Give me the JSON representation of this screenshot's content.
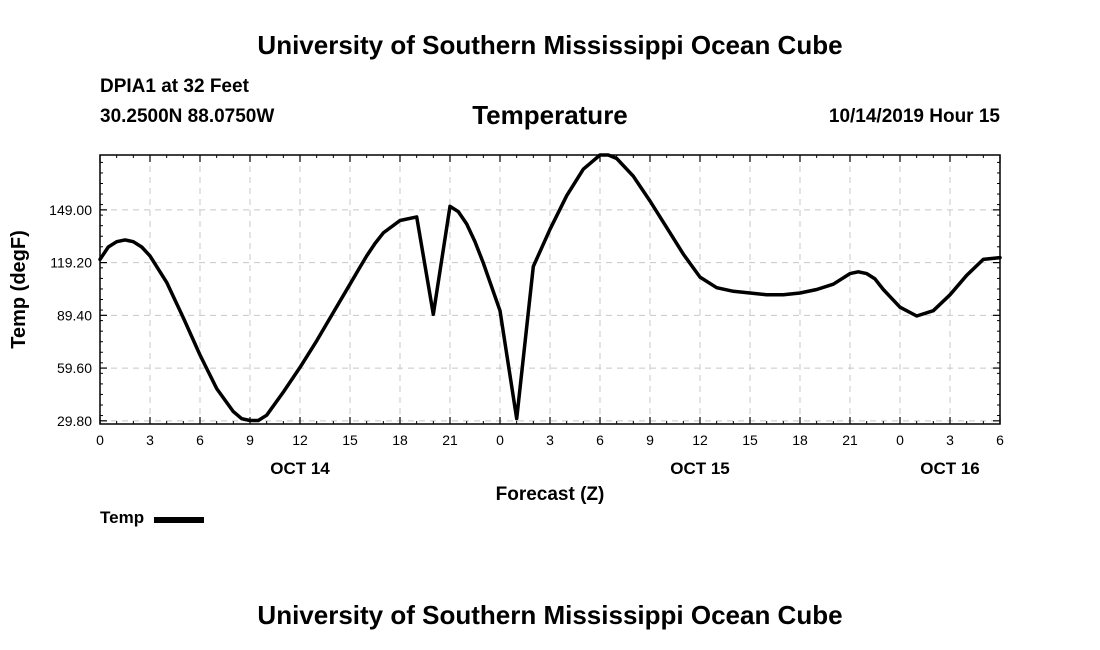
{
  "header": {
    "institution_title": "University of Southern Mississippi Ocean Cube",
    "station": "DPIA1 at 32 Feet",
    "coords": "30.2500N 88.0750W",
    "chart_title": "Temperature",
    "timestamp": "10/14/2019 Hour 15"
  },
  "footer": {
    "institution_title": "University of Southern Mississippi Ocean Cube"
  },
  "legend": {
    "label": "Temp",
    "swatch_color": "#000000"
  },
  "chart_data": {
    "type": "line",
    "title": "Temperature",
    "xlabel": "Forecast (Z)",
    "ylabel": "Temp (degF)",
    "x_unit": "hours since OCT 14 00Z",
    "xlim": [
      0,
      54
    ],
    "ylim": [
      28,
      180
    ],
    "grid": true,
    "yticks": [
      29.8,
      59.6,
      89.4,
      119.2,
      149.0
    ],
    "ytick_labels": [
      "29.80",
      "59.60",
      "89.40",
      "119.20",
      "149.00"
    ],
    "xticks": [
      0,
      3,
      6,
      9,
      12,
      15,
      18,
      21,
      24,
      27,
      30,
      33,
      36,
      39,
      42,
      45,
      48,
      51,
      54
    ],
    "xtick_labels": [
      "0",
      "3",
      "6",
      "9",
      "12",
      "15",
      "18",
      "21",
      "0",
      "3",
      "6",
      "9",
      "12",
      "15",
      "18",
      "21",
      "0",
      "3",
      "6"
    ],
    "day_labels": [
      {
        "x": 12,
        "label": "OCT 14"
      },
      {
        "x": 36,
        "label": "OCT 15"
      },
      {
        "x": 51,
        "label": "OCT 16"
      }
    ],
    "series": [
      {
        "name": "Temp",
        "color": "#000000",
        "x": [
          0,
          0.5,
          1,
          1.5,
          2,
          2.5,
          3,
          4,
          5,
          6,
          7,
          8,
          8.5,
          9,
          9.5,
          10,
          11,
          12,
          13,
          14,
          15,
          15.5,
          16,
          16.5,
          17,
          18,
          19,
          20,
          21,
          21.5,
          22,
          22.5,
          23,
          24,
          25,
          26,
          27,
          28,
          29,
          30,
          30.5,
          31,
          32,
          33,
          34,
          35,
          36,
          37,
          38,
          39,
          40,
          41,
          42,
          43,
          44,
          45,
          45.5,
          46,
          46.5,
          47,
          48,
          49,
          50,
          51,
          52,
          53,
          54
        ],
        "values": [
          121,
          128,
          131,
          132,
          131,
          128,
          123,
          108,
          88,
          67,
          48,
          35,
          31,
          30,
          30,
          33,
          46,
          60,
          75,
          91,
          107,
          115,
          123,
          130,
          136,
          143,
          145,
          90,
          151,
          148,
          141,
          131,
          119,
          92,
          31,
          117,
          138,
          157,
          172,
          180,
          180,
          178,
          168,
          154,
          139,
          124,
          111,
          105,
          103,
          102,
          101,
          101,
          102,
          104,
          107,
          113,
          114,
          113,
          110,
          104,
          94,
          89,
          92,
          101,
          112,
          121,
          122
        ]
      }
    ]
  }
}
